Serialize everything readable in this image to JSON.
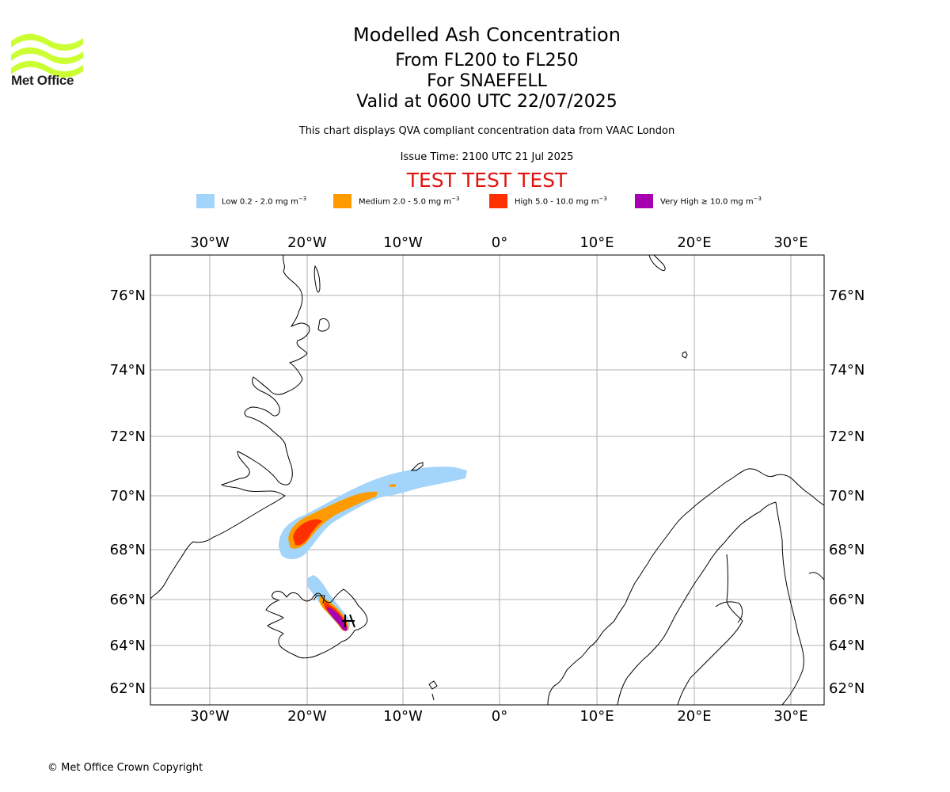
{
  "brand": {
    "logo_text": "Met Office",
    "logo_icon": "met-office-wave-logo",
    "logo_color": "#ccff33"
  },
  "header": {
    "title": "Modelled Ash Concentration",
    "levels": "From FL200 to FL250",
    "volcano": "For SNAEFELL",
    "valid": "Valid at 0600 UTC 22/07/2025",
    "description": "This chart displays QVA compliant concentration data from VAAC London",
    "issue_time": "Issue Time: 2100 UTC 21 Jul 2025",
    "test_banner": "TEST TEST TEST"
  },
  "legend": [
    {
      "label": "Low 0.2 - 2.0 mg m",
      "unit_exp": "−3",
      "color": "#a3d4fa"
    },
    {
      "label": "Medium 2.0 - 5.0 mg m",
      "unit_exp": "−3",
      "color": "#ff9a00"
    },
    {
      "label": "High 5.0 - 10.0 mg m",
      "unit_exp": "−3",
      "color": "#ff3000"
    },
    {
      "label": "Very High  ≥  10.0 mg m",
      "unit_exp": "−3",
      "color": "#a600b0"
    }
  ],
  "map": {
    "lon_ticks": [
      "30°W",
      "20°W",
      "10°W",
      "0°",
      "10°E",
      "20°E",
      "30°E"
    ],
    "lat_ticks": [
      "76°N",
      "74°N",
      "72°N",
      "70°N",
      "68°N",
      "66°N",
      "64°N",
      "62°N"
    ],
    "grid": true,
    "volcano_marker": "volcano-triangle-icon"
  },
  "footer": {
    "copyright": "© Met Office Crown Copyright"
  }
}
